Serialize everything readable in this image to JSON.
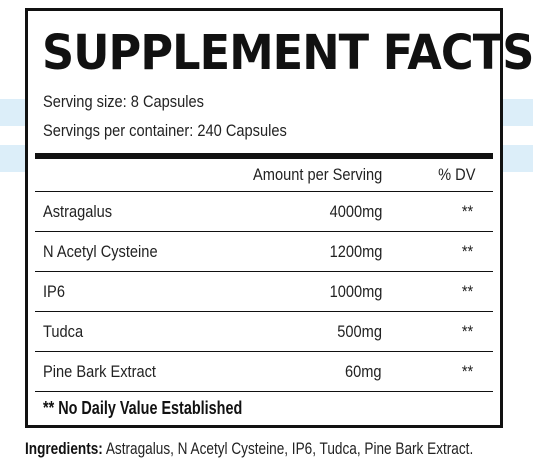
{
  "label": {
    "title": "SUPPLEMENT FACTS",
    "serving_size": "Serving size: 8 Capsules",
    "servings_per_container": "Servings per container: 240 Capsules",
    "columns": {
      "amount": "Amount per Serving",
      "dv": "% DV"
    },
    "rows": [
      {
        "name": "Astragalus",
        "amount": "4000mg",
        "dv": "**"
      },
      {
        "name": "N Acetyl Cysteine",
        "amount": "1200mg",
        "dv": "**"
      },
      {
        "name": "IP6",
        "amount": "1000mg",
        "dv": "**"
      },
      {
        "name": "Tudca",
        "amount": "500mg",
        "dv": "**"
      },
      {
        "name": "Pine Bark Extract",
        "amount": "60mg",
        "dv": "**"
      }
    ],
    "footnote": "** No Daily Value Established"
  },
  "ingredients": {
    "label": "Ingredients:",
    "text": " Astragalus, N Acetyl Cysteine, IP6, Tudca, Pine Bark Extract."
  },
  "colors": {
    "stripe": "#dceef9",
    "ink": "#111111"
  }
}
